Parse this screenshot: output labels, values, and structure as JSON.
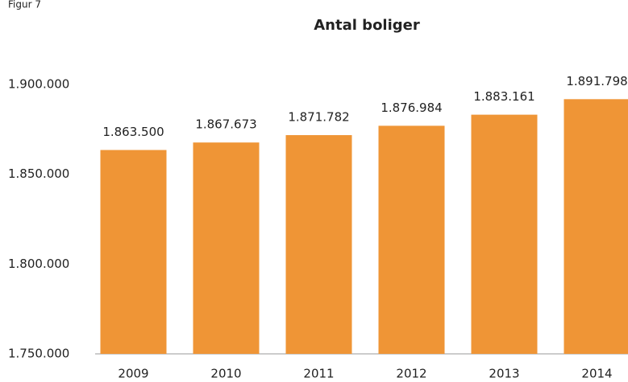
{
  "figure_label": "Figur 7",
  "chart_data": {
    "type": "bar",
    "title": "Antal boliger",
    "categories": [
      "2009",
      "2010",
      "2011",
      "2012",
      "2013",
      "2014"
    ],
    "values": [
      1863500,
      1867673,
      1871782,
      1876984,
      1883161,
      1891798
    ],
    "value_labels": [
      "1.863.500",
      "1.867.673",
      "1.871.782",
      "1.876.984",
      "1.883.161",
      "1.891.798"
    ],
    "color": "#ef9536",
    "ylim": [
      1750000,
      1900000
    ],
    "yticks": [
      {
        "value": 1750000,
        "label": "1.750.000"
      },
      {
        "value": 1800000,
        "label": "1.800.000"
      },
      {
        "value": 1850000,
        "label": "1.850.000"
      },
      {
        "value": 1900000,
        "label": "1.900.000"
      }
    ],
    "grid": false
  }
}
